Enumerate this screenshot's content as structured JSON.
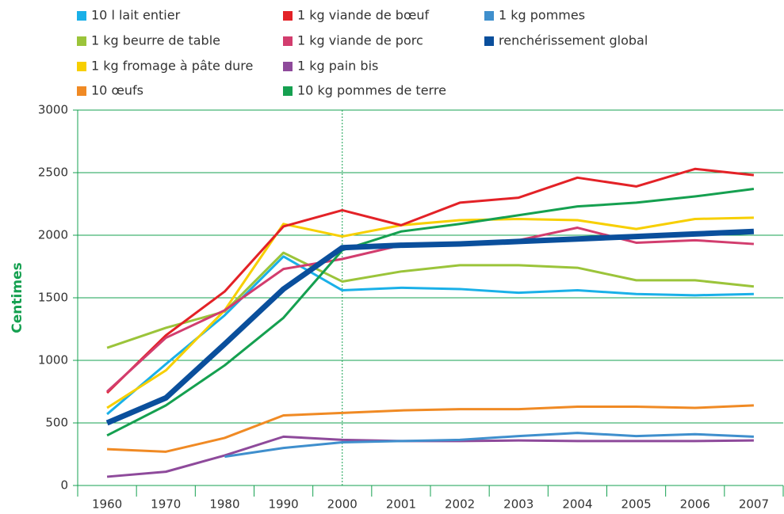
{
  "chart_data": {
    "type": "line",
    "y_label": "Centimes",
    "categories": [
      "1960",
      "1970",
      "1980",
      "1990",
      "2000",
      "2001",
      "2002",
      "2003",
      "2004",
      "2005",
      "2006",
      "2007"
    ],
    "series": [
      {
        "name": "10 l lait entier",
        "color": "#1ab0e8",
        "values": [
          570,
          970,
          1360,
          1830,
          1560,
          1580,
          1570,
          1540,
          1560,
          1530,
          1520,
          1530
        ]
      },
      {
        "name": "1 kg beurre de table",
        "color": "#9bc43a",
        "values": [
          1100,
          1260,
          1390,
          1860,
          1630,
          1710,
          1760,
          1760,
          1740,
          1640,
          1640,
          1590
        ]
      },
      {
        "name": "1 kg fromage à pâte dure",
        "color": "#f7cf00",
        "values": [
          620,
          920,
          1400,
          2090,
          1990,
          2080,
          2120,
          2130,
          2120,
          2050,
          2130,
          2140
        ]
      },
      {
        "name": "10 œufs",
        "color": "#f08a24",
        "values": [
          290,
          270,
          380,
          560,
          580,
          600,
          610,
          610,
          630,
          630,
          620,
          640
        ]
      },
      {
        "name": "1 kg viande de bœuf",
        "color": "#e32227",
        "values": [
          740,
          1200,
          1550,
          2070,
          2200,
          2080,
          2260,
          2300,
          2460,
          2390,
          2530,
          2480
        ]
      },
      {
        "name": "1 kg viande de porc",
        "color": "#d23d6e",
        "values": [
          750,
          1180,
          1400,
          1730,
          1810,
          1920,
          1940,
          1960,
          2060,
          1940,
          1960,
          1930
        ]
      },
      {
        "name": "1 kg pain bis",
        "color": "#8e4a9b",
        "values": [
          70,
          110,
          240,
          390,
          365,
          355,
          355,
          360,
          355,
          355,
          355,
          360
        ]
      },
      {
        "name": "10 kg pommes de terre",
        "color": "#15a050",
        "values": [
          400,
          640,
          960,
          1340,
          1880,
          2030,
          2090,
          2160,
          2230,
          2260,
          2310,
          2370
        ]
      },
      {
        "name": "1 kg pommes",
        "color": "#3f8fcd",
        "values": [
          null,
          null,
          230,
          300,
          345,
          355,
          365,
          395,
          420,
          395,
          410,
          390
        ]
      },
      {
        "name": "renchérissement global",
        "color": "#0a4f9c",
        "values": [
          500,
          700,
          1130,
          1570,
          1900,
          1920,
          1930,
          1950,
          1970,
          1990,
          2010,
          2030
        ]
      }
    ],
    "ylim": [
      0,
      3000
    ],
    "yticks": [
      0,
      500,
      1000,
      1500,
      2000,
      2500,
      3000
    ],
    "grid": true,
    "vline_at": "2000"
  }
}
